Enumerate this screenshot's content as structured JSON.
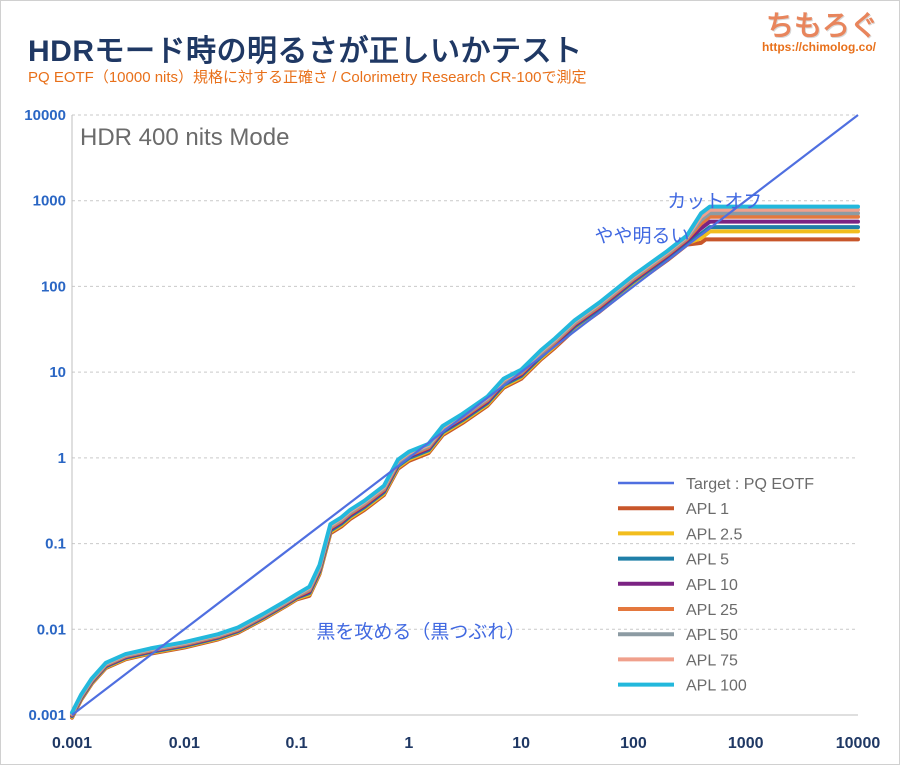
{
  "header": {
    "title": "HDRモード時の明るさが正しいかテスト",
    "subtitle": "PQ EOTF（10000 nits）規格に対する正確さ / Colorimetry Research CR-100で測定",
    "brand": "ちもろぐ",
    "brand_url": "https://chimolog.co/"
  },
  "chart_data": {
    "type": "line",
    "x_scale": "log",
    "y_scale": "log",
    "xlim": [
      0.001,
      10000
    ],
    "ylim": [
      0.001,
      10000
    ],
    "x_ticks": [
      "0.001",
      "0.01",
      "0.1",
      "1",
      "10",
      "100",
      "1000",
      "10000"
    ],
    "y_ticks": [
      "0.001",
      "0.01",
      "0.1",
      "1",
      "10",
      "100",
      "1000",
      "10000"
    ],
    "grid": "horizontal dashed",
    "legend_position": "bottom-right",
    "mode_label": "HDR 400 nits Mode",
    "annotations": [
      {
        "text": "カットオフ",
        "x": 200,
        "y": 1000
      },
      {
        "text": "やや明るい",
        "x": 45,
        "y": 400
      },
      {
        "text": "黒を攻める（黒つぶれ）",
        "x": 0.15,
        "y": 0.0095
      }
    ],
    "series": [
      {
        "name": "Target : PQ EOTF",
        "color": "#4f6fe0",
        "width": 2.2,
        "x": [
          0.001,
          10000
        ],
        "y": [
          0.001,
          10000
        ]
      },
      {
        "name": "APL 1",
        "color": "#c8562a",
        "width": 4,
        "cap": 440
      },
      {
        "name": "APL 2.5",
        "color": "#f2bd1d",
        "width": 4,
        "cap": 480
      },
      {
        "name": "APL 5",
        "color": "#1f7fa8",
        "width": 4,
        "cap": 520
      },
      {
        "name": "APL 10",
        "color": "#7b2383",
        "width": 4,
        "cap": 580
      },
      {
        "name": "APL 25",
        "color": "#e4783e",
        "width": 4,
        "cap": 640
      },
      {
        "name": "APL 50",
        "color": "#8c9ba3",
        "width": 4,
        "cap": 680
      },
      {
        "name": "APL 75",
        "color": "#f0a08c",
        "width": 4,
        "cap": 720
      },
      {
        "name": "APL 100",
        "color": "#23b8dc",
        "width": 4,
        "cap": 760
      }
    ],
    "apl_shape": {
      "x": [
        0.001,
        0.0012,
        0.0015,
        0.002,
        0.003,
        0.005,
        0.01,
        0.02,
        0.03,
        0.05,
        0.08,
        0.1,
        0.13,
        0.16,
        0.2,
        0.25,
        0.3,
        0.4,
        0.6,
        0.8,
        1,
        1.5,
        2,
        3,
        5,
        7,
        10,
        15,
        20,
        30,
        50,
        100,
        200,
        300,
        400,
        480
      ],
      "y": [
        0.001,
        0.0016,
        0.0025,
        0.0038,
        0.0048,
        0.0056,
        0.0066,
        0.0082,
        0.0098,
        0.014,
        0.02,
        0.024,
        0.028,
        0.05,
        0.15,
        0.18,
        0.22,
        0.28,
        0.42,
        0.85,
        1.05,
        1.3,
        2.1,
        2.9,
        4.6,
        7.5,
        9.5,
        16,
        22,
        36,
        58,
        120,
        230,
        350,
        460,
        480
      ],
      "mid_offset": [
        0,
        5e-05,
        0.0001,
        0.0002,
        0.0003,
        0.0003,
        0.0003,
        0.0003,
        0.0003,
        0.0003,
        0.0003,
        0.0003,
        0.0004,
        0.01,
        0.03,
        0.02,
        0.02,
        0.03,
        0.05,
        0.1,
        0.1,
        0.2,
        0.3,
        0.3,
        0.5,
        0.8,
        1,
        1.5,
        2,
        3,
        5,
        10,
        20,
        30,
        40,
        0
      ]
    }
  }
}
